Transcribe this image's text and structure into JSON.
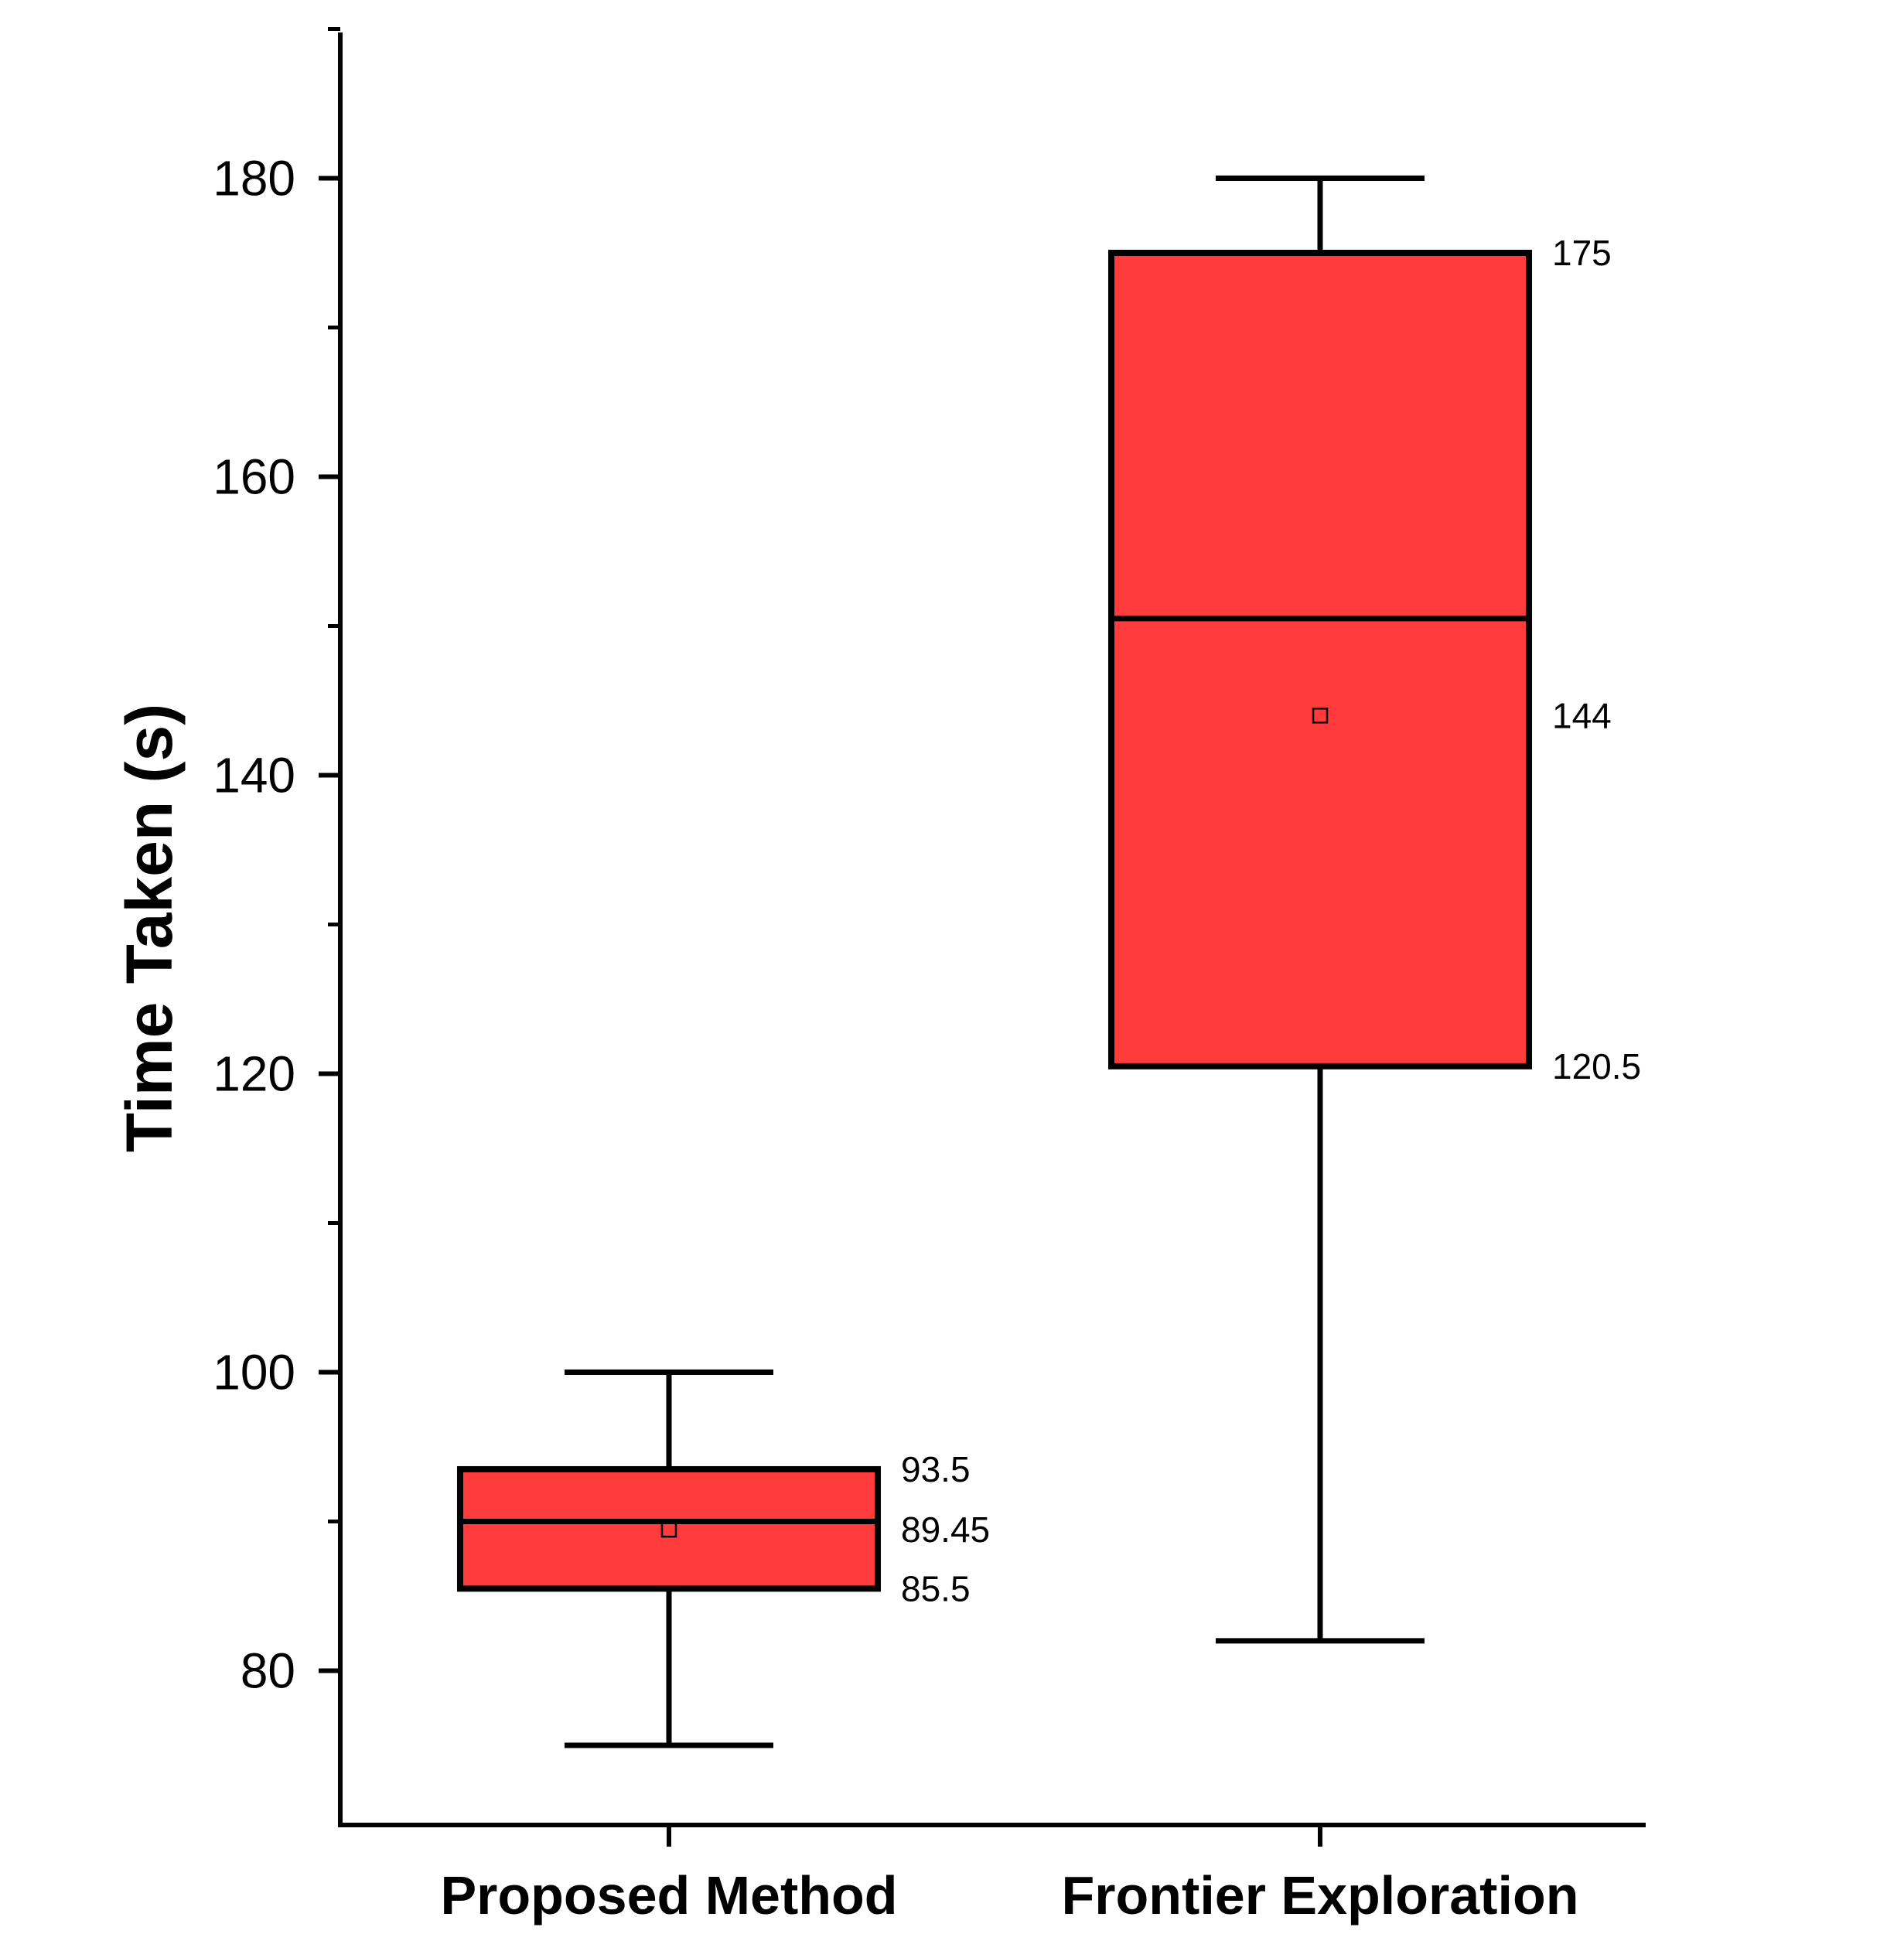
{
  "chart_data": {
    "type": "box",
    "title": "",
    "xlabel": "",
    "ylabel": "Time Taken (s)",
    "ylim": [
      70,
      190
    ],
    "yticks": [
      80,
      100,
      120,
      140,
      160,
      180
    ],
    "yticks_minor": [
      90,
      110,
      130,
      150,
      170,
      190
    ],
    "categories": [
      "Proposed Method",
      "Frontier Exploration"
    ],
    "series": [
      {
        "name": "Proposed Method",
        "whisker_low": 75,
        "q1": 85.5,
        "median": 90,
        "q3": 93.5,
        "whisker_high": 100,
        "mean": 89.45,
        "annotations": [
          "93.5",
          "89.45",
          "85.5"
        ]
      },
      {
        "name": "Frontier Exploration",
        "whisker_low": 82,
        "q1": 120.5,
        "median": 150.5,
        "q3": 175,
        "whisker_high": 180,
        "mean": 144,
        "annotations": [
          "175",
          "144",
          "120.5"
        ]
      }
    ],
    "colors": {
      "box_fill": "#ff3b3b",
      "stroke": "#000000"
    }
  }
}
